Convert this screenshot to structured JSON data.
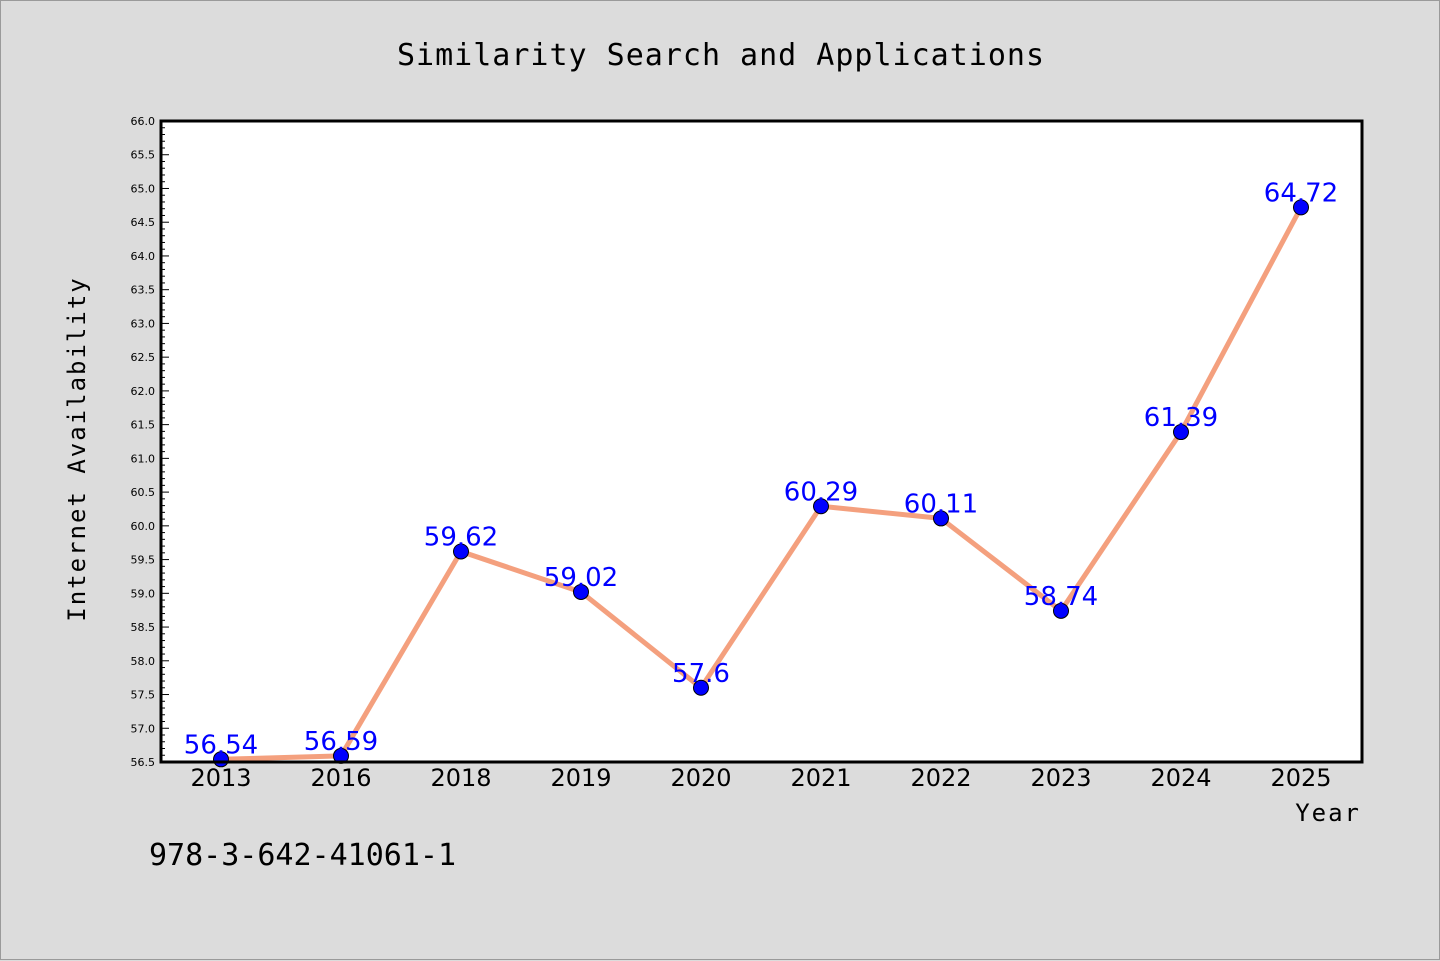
{
  "colors": {
    "background": "#dcdcdc",
    "plot_background": "#ffffff",
    "line": "#f4a07e",
    "marker": "#0000ff",
    "data_label": "#0000ff",
    "axes": "#000000"
  },
  "footer": {
    "isbn": "978-3-642-41061-1"
  },
  "chart_data": {
    "type": "line",
    "title": "Similarity Search and Applications",
    "xlabel": "Year",
    "ylabel": "Internet Availability",
    "categories": [
      "2013",
      "2016",
      "2018",
      "2019",
      "2020",
      "2021",
      "2022",
      "2023",
      "2024",
      "2025"
    ],
    "series": [
      {
        "values": [
          56.54,
          56.59,
          59.62,
          59.02,
          57.6,
          60.29,
          60.11,
          58.74,
          61.39,
          64.72
        ]
      }
    ],
    "data_labels": [
      "56.54",
      "56.59",
      "59.62",
      "59.02",
      "57.6",
      "60.29",
      "60.11",
      "58.74",
      "61.39",
      "64.72"
    ],
    "ylim": [
      56.5,
      66.0
    ],
    "yticks": [
      "56.5",
      "57.0",
      "57.5",
      "58.0",
      "58.5",
      "59.0",
      "59.5",
      "60.0",
      "60.5",
      "61.0",
      "61.5",
      "62.0",
      "62.5",
      "63.0",
      "63.5",
      "64.0",
      "64.5",
      "65.0",
      "65.5",
      "66.0"
    ],
    "grid": false,
    "legend": "none"
  }
}
